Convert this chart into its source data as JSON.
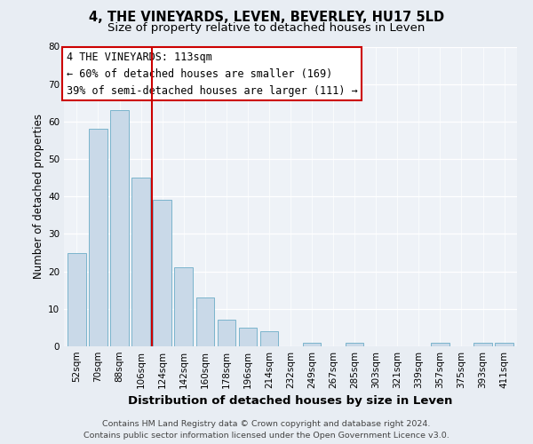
{
  "title": "4, THE VINEYARDS, LEVEN, BEVERLEY, HU17 5LD",
  "subtitle": "Size of property relative to detached houses in Leven",
  "xlabel": "Distribution of detached houses by size in Leven",
  "ylabel": "Number of detached properties",
  "bar_labels": [
    "52sqm",
    "70sqm",
    "88sqm",
    "106sqm",
    "124sqm",
    "142sqm",
    "160sqm",
    "178sqm",
    "196sqm",
    "214sqm",
    "232sqm",
    "249sqm",
    "267sqm",
    "285sqm",
    "303sqm",
    "321sqm",
    "339sqm",
    "357sqm",
    "375sqm",
    "393sqm",
    "411sqm"
  ],
  "bar_values": [
    25,
    58,
    63,
    45,
    39,
    21,
    13,
    7,
    5,
    4,
    0,
    1,
    0,
    1,
    0,
    0,
    0,
    1,
    0,
    1,
    1
  ],
  "bar_color": "#c9d9e8",
  "bar_edge_color": "#7ab4cc",
  "vline_x": 3.5,
  "vline_color": "#cc0000",
  "annotation_line0": "4 THE VINEYARDS: 113sqm",
  "annotation_line1": "← 60% of detached houses are smaller (169)",
  "annotation_line2": "39% of semi-detached houses are larger (111) →",
  "annotation_box_color": "#ffffff",
  "annotation_box_edge": "#cc0000",
  "ylim": [
    0,
    80
  ],
  "yticks": [
    0,
    10,
    20,
    30,
    40,
    50,
    60,
    70,
    80
  ],
  "background_color": "#e8edf3",
  "plot_bg_color": "#eef2f7",
  "footer_line1": "Contains HM Land Registry data © Crown copyright and database right 2024.",
  "footer_line2": "Contains public sector information licensed under the Open Government Licence v3.0.",
  "title_fontsize": 10.5,
  "subtitle_fontsize": 9.5,
  "xlabel_fontsize": 9.5,
  "ylabel_fontsize": 8.5,
  "tick_fontsize": 7.5,
  "annotation_fontsize": 8.5,
  "footer_fontsize": 6.8
}
